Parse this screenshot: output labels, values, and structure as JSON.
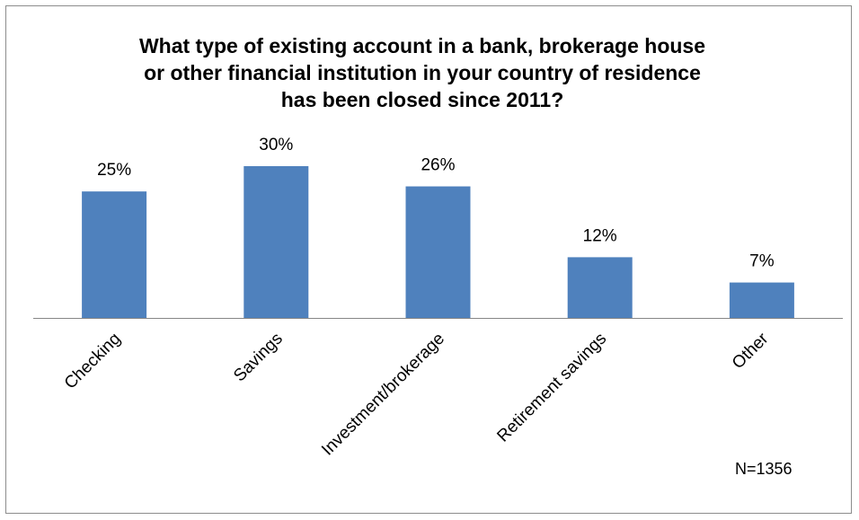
{
  "chart_data": {
    "type": "bar",
    "title_lines": [
      "What type of existing account in a bank, brokerage house",
      "or other financial institution in your country of residence",
      "has been closed since 2011?"
    ],
    "categories": [
      "Checking",
      "Savings",
      "Investment/brokerage",
      "Retirement savings",
      "Other"
    ],
    "values": [
      25,
      30,
      26,
      12,
      7
    ],
    "data_labels": [
      "25%",
      "30%",
      "26%",
      "12%",
      "7%"
    ],
    "unit": "%",
    "ylim": [
      0,
      30
    ],
    "grid": false,
    "legend": "none",
    "note": "N=1356",
    "bar_color": "#4f81bd",
    "axis_color": "#868686"
  }
}
